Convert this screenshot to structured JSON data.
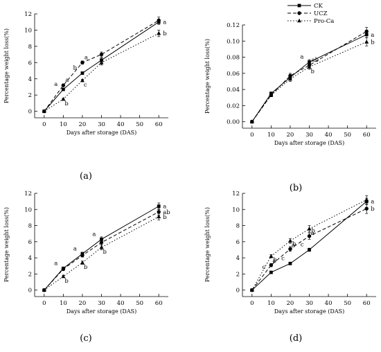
{
  "chart_data": [
    {
      "type": "line",
      "panel_label": "(a)",
      "xlabel": "Days after storage (DAS)",
      "ylabel": "Percentage weight loss(%)",
      "x": [
        0,
        10,
        20,
        30,
        60
      ],
      "xlim": [
        -5,
        65
      ],
      "xticks": [
        0,
        10,
        20,
        30,
        40,
        50,
        60
      ],
      "xticklabels": [
        "0",
        "10",
        "20",
        "30",
        "40",
        "50",
        "60"
      ],
      "ylim": [
        -0.8,
        12
      ],
      "yticks": [
        0,
        2,
        4,
        6,
        8,
        10,
        12
      ],
      "yticklabels": [
        "0",
        "2",
        "4",
        "6",
        "8",
        "10",
        "12"
      ],
      "series": [
        {
          "name": "CK",
          "values": [
            0,
            2.7,
            4.7,
            6.3,
            11.0
          ],
          "err": [
            0,
            0.1,
            0.15,
            0.3,
            0.3
          ],
          "labels": [
            "",
            "a",
            "b",
            "",
            "a"
          ]
        },
        {
          "name": "UCZ",
          "values": [
            0,
            3.2,
            6.0,
            7.0,
            11.2
          ],
          "err": [
            0,
            0.15,
            0.2,
            0.3,
            0.4
          ],
          "labels": [
            "",
            "a",
            "a",
            "",
            ""
          ]
        },
        {
          "name": "Pro-Ca",
          "values": [
            0,
            1.5,
            3.8,
            6.0,
            9.6
          ],
          "err": [
            0,
            0.1,
            0.15,
            0.3,
            0.4
          ],
          "labels": [
            "",
            "b",
            "c",
            "",
            "b"
          ]
        }
      ]
    },
    {
      "type": "line",
      "panel_label": "(b)",
      "xlabel": "Days after storage (DAS)",
      "ylabel": "Percentage weight loss(%)",
      "x": [
        0,
        10,
        20,
        30,
        60
      ],
      "xlim": [
        -5,
        65
      ],
      "xticks": [
        0,
        10,
        20,
        30,
        40,
        50,
        60
      ],
      "xticklabels": [
        "0",
        "10",
        "20",
        "30",
        "40",
        "50",
        "60"
      ],
      "ylim": [
        -0.008,
        0.12
      ],
      "yticks": [
        0,
        0.02,
        0.04,
        0.06,
        0.08,
        0.1,
        0.12
      ],
      "yticklabels": [
        "0.00",
        "0.02",
        "0.04",
        "0.06",
        "0.08",
        "0.10",
        "0.12"
      ],
      "series": [
        {
          "name": "CK",
          "values": [
            0,
            0.035,
            0.055,
            0.074,
            0.108
          ],
          "err": [
            0,
            0.002,
            0.003,
            0.003,
            0.004
          ],
          "labels": [
            "",
            "",
            "",
            "a",
            "a"
          ]
        },
        {
          "name": "UCZ",
          "values": [
            0,
            0.033,
            0.057,
            0.07,
            0.112
          ],
          "err": [
            0,
            0.002,
            0.003,
            0.003,
            0.005
          ],
          "labels": [
            "",
            "",
            "",
            "ab",
            ""
          ]
        },
        {
          "name": "Pro-Ca",
          "values": [
            0,
            0.033,
            0.053,
            0.068,
            0.099
          ],
          "err": [
            0,
            0.002,
            0.003,
            0.003,
            0.005
          ],
          "labels": [
            "",
            "",
            "",
            "b",
            "b"
          ]
        }
      ]
    },
    {
      "type": "line",
      "panel_label": "(c)",
      "xlabel": "Days after storage (DAS)",
      "ylabel": "Percentage weight loss(%)",
      "x": [
        0,
        10,
        20,
        30,
        60
      ],
      "xlim": [
        -5,
        65
      ],
      "xticks": [
        0,
        10,
        20,
        30,
        40,
        50,
        60
      ],
      "xticklabels": [
        "0",
        "10",
        "20",
        "30",
        "40",
        "50",
        "60"
      ],
      "ylim": [
        -0.8,
        12
      ],
      "yticks": [
        0,
        2,
        4,
        6,
        8,
        10,
        12
      ],
      "yticklabels": [
        "0",
        "2",
        "4",
        "6",
        "8",
        "10",
        "12"
      ],
      "series": [
        {
          "name": "CK",
          "values": [
            0,
            2.7,
            4.5,
            6.3,
            10.4
          ],
          "err": [
            0,
            0.15,
            0.2,
            0.3,
            0.4
          ],
          "labels": [
            "",
            "a",
            "a",
            "a",
            "a"
          ]
        },
        {
          "name": "UCZ",
          "values": [
            0,
            2.6,
            4.3,
            5.9,
            9.7
          ],
          "err": [
            0,
            0.15,
            0.2,
            0.3,
            0.4
          ],
          "labels": [
            "",
            "",
            "",
            "",
            "ab"
          ]
        },
        {
          "name": "Pro-Ca",
          "values": [
            0,
            1.7,
            3.4,
            5.3,
            9.1
          ],
          "err": [
            0,
            0.15,
            0.2,
            0.3,
            0.4
          ],
          "labels": [
            "",
            "b",
            "b",
            "b",
            "b"
          ]
        }
      ]
    },
    {
      "type": "line",
      "panel_label": "(d)",
      "xlabel": "Days after storage (DAS)",
      "ylabel": "Percentage weight loss(%)",
      "x": [
        0,
        10,
        20,
        30,
        60
      ],
      "xlim": [
        -5,
        65
      ],
      "xticks": [
        0,
        10,
        20,
        30,
        40,
        50,
        60
      ],
      "xticklabels": [
        "0",
        "10",
        "20",
        "30",
        "40",
        "50",
        "60"
      ],
      "ylim": [
        -0.8,
        12
      ],
      "yticks": [
        0,
        2,
        4,
        6,
        8,
        10,
        12
      ],
      "yticklabels": [
        "0",
        "2",
        "4",
        "6",
        "8",
        "10",
        "12"
      ],
      "series": [
        {
          "name": "CK",
          "values": [
            0,
            2.2,
            3.3,
            5.0,
            11.0
          ],
          "err": [
            0,
            0.1,
            0.15,
            0.2,
            0.4
          ],
          "labels": [
            "",
            "c",
            "c",
            "c",
            "a"
          ]
        },
        {
          "name": "UCZ",
          "values": [
            0,
            3.1,
            5.1,
            6.7,
            10.1
          ],
          "err": [
            0,
            0.2,
            0.3,
            0.4,
            0.6
          ],
          "labels": [
            "",
            "b",
            "b",
            "b",
            "b"
          ]
        },
        {
          "name": "Pro-Ca",
          "values": [
            0,
            4.2,
            6.1,
            7.6,
            11.2
          ],
          "err": [
            0,
            0.2,
            0.3,
            0.4,
            0.5
          ],
          "labels": [
            "",
            "a",
            "a",
            "a",
            ""
          ]
        }
      ]
    }
  ],
  "legend": {
    "entries": [
      "CK",
      "UCZ",
      "Pro-Ca"
    ],
    "placement": "top-right"
  },
  "style": {
    "line_color": "#000000",
    "background": "#ffffff"
  }
}
